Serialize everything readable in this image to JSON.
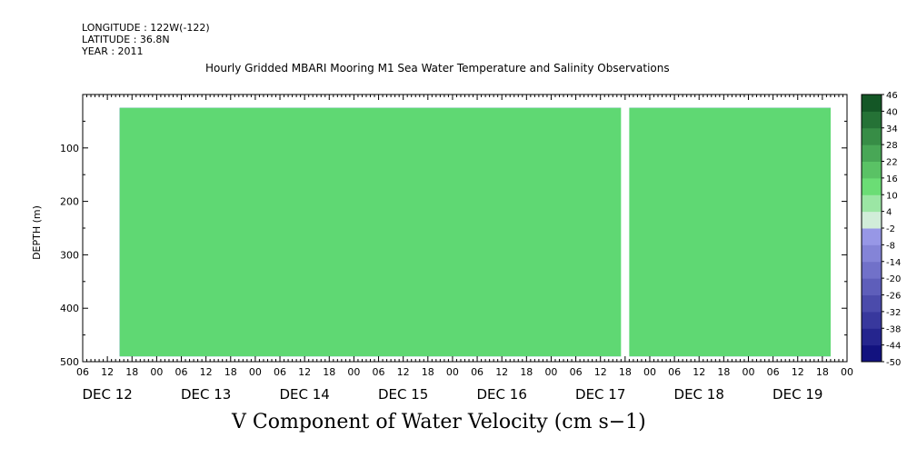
{
  "header": {
    "longitude": "LONGITUDE : 122W(-122)",
    "latitude": "LATITUDE : 36.8N",
    "year": "YEAR : 2011"
  },
  "chart_data": {
    "type": "heatmap",
    "title": "Hourly Gridded MBARI Mooring M1 Sea Water Temperature and Salinity Observations",
    "xlabel": "V Component of Water Velocity (cm s−1)",
    "ylabel": "DEPTH (m)",
    "ylim": [
      500,
      0
    ],
    "yticks": [
      100,
      200,
      300,
      400,
      500
    ],
    "xlim_hours": [
      0,
      186
    ],
    "hour_tick_labels": [
      "06",
      "12",
      "18",
      "00",
      "06",
      "12",
      "18",
      "00",
      "06",
      "12",
      "18",
      "00",
      "06",
      "12",
      "18",
      "00",
      "06",
      "12",
      "18",
      "00",
      "06",
      "12",
      "18",
      "00",
      "06",
      "12",
      "18",
      "00",
      "06",
      "12",
      "18",
      "00"
    ],
    "day_labels": [
      "DEC 12",
      "DEC 13",
      "DEC 14",
      "DEC 15",
      "DEC 16",
      "DEC 17",
      "DEC 18",
      "DEC 19"
    ],
    "data_depth_range": [
      25,
      490
    ],
    "data_gap_hours": [
      131,
      133
    ],
    "colorbar": {
      "levels": [
        -50,
        -44,
        -38,
        -32,
        -26,
        -20,
        -14,
        -8,
        -2,
        4,
        10,
        16,
        22,
        28,
        34,
        40,
        46
      ],
      "low_color": "#080878",
      "mid_color": "#a7a7f2",
      "high_color": "#0b4a1e"
    },
    "grid": false,
    "legend": "right"
  }
}
